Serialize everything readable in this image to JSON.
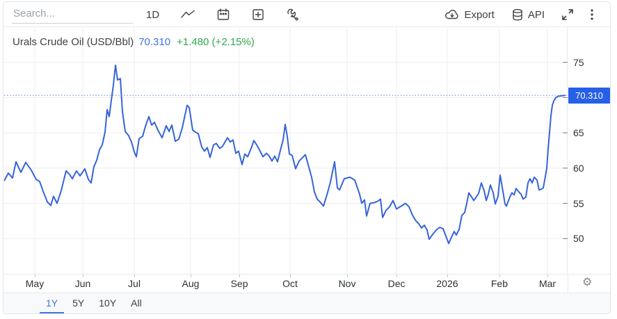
{
  "toolbar": {
    "search_placeholder": "Search...",
    "interval_label": "1D",
    "export_label": "Export",
    "api_label": "API"
  },
  "header": {
    "title": "Urals Crude Oil (USD/Bbl)",
    "price": "70.310",
    "change": "+1.480 (+2.15%)"
  },
  "icons": {
    "gear": "⚙"
  },
  "chart_data": {
    "type": "line",
    "title": "Urals Crude Oil (USD/Bbl)",
    "unit": "USD/Bbl",
    "last_price": 70.31,
    "change_abs": 1.48,
    "change_pct": 2.15,
    "current_price_label": "70.310",
    "grid": true,
    "legend_position": "top-left",
    "ylim": [
      45,
      80
    ],
    "yticks": [
      50,
      55,
      60,
      65,
      70,
      75
    ],
    "x_ticks": [
      {
        "label": "May",
        "pos": 0.0546
      },
      {
        "label": "Jun",
        "pos": 0.1402
      },
      {
        "label": "Jul",
        "pos": 0.232
      },
      {
        "label": "Aug",
        "pos": 0.3325
      },
      {
        "label": "Sep",
        "pos": 0.4194
      },
      {
        "label": "Oct",
        "pos": 0.5099
      },
      {
        "label": "Nov",
        "pos": 0.6117
      },
      {
        "label": "Dec",
        "pos": 0.6998
      },
      {
        "label": "2026",
        "pos": 0.7903
      },
      {
        "label": "Feb",
        "pos": 0.8833
      },
      {
        "label": "Mar",
        "pos": 0.969
      }
    ],
    "colors": {
      "line": "#3564d9",
      "dotted_line": "#7d98e3",
      "badge": "#2760e8",
      "grid": "#ededf0"
    },
    "series": [
      {
        "name": "Urals Crude Oil",
        "points": [
          [
            0.0,
            58.2
          ],
          [
            0.0074,
            59.3
          ],
          [
            0.0149,
            58.6
          ],
          [
            0.0211,
            60.9
          ],
          [
            0.0298,
            59.4
          ],
          [
            0.0385,
            60.8
          ],
          [
            0.0484,
            59.7
          ],
          [
            0.0571,
            58.4
          ],
          [
            0.0633,
            58.1
          ],
          [
            0.0695,
            56.7
          ],
          [
            0.0769,
            55.2
          ],
          [
            0.0831,
            54.7
          ],
          [
            0.0881,
            56.0
          ],
          [
            0.0943,
            55.0
          ],
          [
            0.1017,
            56.8
          ],
          [
            0.1104,
            59.6
          ],
          [
            0.1166,
            59.1
          ],
          [
            0.1216,
            58.5
          ],
          [
            0.129,
            59.6
          ],
          [
            0.1352,
            58.9
          ],
          [
            0.1439,
            59.9
          ],
          [
            0.1501,
            58.4
          ],
          [
            0.1551,
            57.9
          ],
          [
            0.16,
            60.2
          ],
          [
            0.165,
            61.1
          ],
          [
            0.17,
            62.6
          ],
          [
            0.1749,
            63.3
          ],
          [
            0.1799,
            65.1
          ],
          [
            0.1836,
            68.3
          ],
          [
            0.1873,
            67.3
          ],
          [
            0.1911,
            69.6
          ],
          [
            0.1948,
            71.8
          ],
          [
            0.1985,
            74.6
          ],
          [
            0.2022,
            72.5
          ],
          [
            0.2072,
            72.7
          ],
          [
            0.2109,
            68.0
          ],
          [
            0.2159,
            65.2
          ],
          [
            0.2221,
            64.6
          ],
          [
            0.227,
            63.7
          ],
          [
            0.232,
            62.3
          ],
          [
            0.2357,
            61.6
          ],
          [
            0.2407,
            64.2
          ],
          [
            0.2469,
            64.5
          ],
          [
            0.2519,
            65.9
          ],
          [
            0.2581,
            67.3
          ],
          [
            0.263,
            66.1
          ],
          [
            0.268,
            66.5
          ],
          [
            0.2742,
            65.4
          ],
          [
            0.2816,
            64.3
          ],
          [
            0.2891,
            66.0
          ],
          [
            0.294,
            65.2
          ],
          [
            0.299,
            66.1
          ],
          [
            0.3052,
            63.8
          ],
          [
            0.3114,
            64.1
          ],
          [
            0.3176,
            65.7
          ],
          [
            0.3263,
            68.9
          ],
          [
            0.33,
            68.6
          ],
          [
            0.3362,
            65.4
          ],
          [
            0.3412,
            65.1
          ],
          [
            0.3462,
            64.9
          ],
          [
            0.3524,
            63.0
          ],
          [
            0.3573,
            62.4
          ],
          [
            0.3623,
            62.9
          ],
          [
            0.3672,
            61.5
          ],
          [
            0.3734,
            63.3
          ],
          [
            0.3784,
            63.5
          ],
          [
            0.3846,
            62.8
          ],
          [
            0.3896,
            63.1
          ],
          [
            0.3983,
            64.3
          ],
          [
            0.4032,
            63.7
          ],
          [
            0.4082,
            64.0
          ],
          [
            0.4132,
            62.1
          ],
          [
            0.4181,
            62.4
          ],
          [
            0.4243,
            60.5
          ],
          [
            0.4293,
            62.0
          ],
          [
            0.4342,
            61.6
          ],
          [
            0.4404,
            62.8
          ],
          [
            0.4454,
            63.9
          ],
          [
            0.4504,
            63.3
          ],
          [
            0.4566,
            62.4
          ],
          [
            0.4615,
            61.6
          ],
          [
            0.4677,
            62.1
          ],
          [
            0.4727,
            61.7
          ],
          [
            0.4777,
            61.0
          ],
          [
            0.4826,
            61.7
          ],
          [
            0.4876,
            60.9
          ],
          [
            0.4926,
            62.5
          ],
          [
            0.4975,
            64.0
          ],
          [
            0.5012,
            66.2
          ],
          [
            0.505,
            64.5
          ],
          [
            0.5087,
            62.0
          ],
          [
            0.5136,
            61.8
          ],
          [
            0.5199,
            59.9
          ],
          [
            0.5261,
            61.0
          ],
          [
            0.531,
            61.4
          ],
          [
            0.5372,
            61.9
          ],
          [
            0.5422,
            60.5
          ],
          [
            0.5484,
            58.7
          ],
          [
            0.5533,
            56.6
          ],
          [
            0.5583,
            55.6
          ],
          [
            0.5645,
            55.1
          ],
          [
            0.5695,
            54.6
          ],
          [
            0.5757,
            56.2
          ],
          [
            0.5819,
            58.0
          ],
          [
            0.5893,
            60.9
          ],
          [
            0.5943,
            57.2
          ],
          [
            0.598,
            56.9
          ],
          [
            0.6067,
            58.5
          ],
          [
            0.6166,
            58.7
          ],
          [
            0.6253,
            58.3
          ],
          [
            0.634,
            56.3
          ],
          [
            0.6377,
            55.0
          ],
          [
            0.6427,
            55.5
          ],
          [
            0.6464,
            53.2
          ],
          [
            0.6526,
            55.0
          ],
          [
            0.6601,
            55.1
          ],
          [
            0.6663,
            55.3
          ],
          [
            0.6712,
            55.6
          ],
          [
            0.675,
            53.0
          ],
          [
            0.6812,
            54.0
          ],
          [
            0.6874,
            54.5
          ],
          [
            0.6936,
            55.4
          ],
          [
            0.6998,
            54.2
          ],
          [
            0.706,
            54.5
          ],
          [
            0.7159,
            55.0
          ],
          [
            0.7221,
            54.5
          ],
          [
            0.7283,
            53.3
          ],
          [
            0.7345,
            52.5
          ],
          [
            0.7395,
            52.1
          ],
          [
            0.7444,
            51.5
          ],
          [
            0.7494,
            51.9
          ],
          [
            0.7543,
            51.2
          ],
          [
            0.7581,
            49.9
          ],
          [
            0.7643,
            50.6
          ],
          [
            0.7705,
            51.2
          ],
          [
            0.7767,
            51.6
          ],
          [
            0.7829,
            51.4
          ],
          [
            0.7928,
            49.3
          ],
          [
            0.799,
            50.4
          ],
          [
            0.8027,
            51.0
          ],
          [
            0.8065,
            50.5
          ],
          [
            0.8114,
            51.3
          ],
          [
            0.8164,
            53.3
          ],
          [
            0.8213,
            53.7
          ],
          [
            0.8251,
            55.0
          ],
          [
            0.8288,
            56.5
          ],
          [
            0.8337,
            55.9
          ],
          [
            0.8375,
            55.4
          ],
          [
            0.8412,
            55.8
          ],
          [
            0.8462,
            56.4
          ],
          [
            0.8511,
            57.9
          ],
          [
            0.8561,
            56.8
          ],
          [
            0.8598,
            55.4
          ],
          [
            0.8635,
            56.3
          ],
          [
            0.8672,
            57.6
          ],
          [
            0.8722,
            56.5
          ],
          [
            0.8759,
            54.9
          ],
          [
            0.8809,
            56.0
          ],
          [
            0.8846,
            59.0
          ],
          [
            0.8883,
            57.3
          ],
          [
            0.8933,
            54.9
          ],
          [
            0.8958,
            54.6
          ],
          [
            0.902,
            55.9
          ],
          [
            0.9057,
            56.5
          ],
          [
            0.9094,
            56.2
          ],
          [
            0.9132,
            57.1
          ],
          [
            0.9181,
            56.6
          ],
          [
            0.9218,
            56.3
          ],
          [
            0.9256,
            55.6
          ],
          [
            0.9305,
            55.9
          ],
          [
            0.9342,
            57.9
          ],
          [
            0.938,
            58.5
          ],
          [
            0.9417,
            57.9
          ],
          [
            0.9454,
            58.7
          ],
          [
            0.9504,
            58.3
          ],
          [
            0.9541,
            56.9
          ],
          [
            0.9578,
            57.0
          ],
          [
            0.9615,
            57.2
          ],
          [
            0.9653,
            58.8
          ],
          [
            0.9677,
            60.0
          ],
          [
            0.9702,
            62.7
          ],
          [
            0.9727,
            65.0
          ],
          [
            0.9752,
            67.4
          ],
          [
            0.9777,
            68.9
          ],
          [
            0.9801,
            69.5
          ],
          [
            0.9839,
            70.0
          ],
          [
            0.9888,
            70.2
          ],
          [
            1.0,
            70.31
          ]
        ]
      }
    ]
  },
  "footer": {
    "ranges": [
      {
        "label": "1Y",
        "active": true
      },
      {
        "label": "5Y",
        "active": false
      },
      {
        "label": "10Y",
        "active": false
      },
      {
        "label": "All",
        "active": false
      }
    ]
  }
}
